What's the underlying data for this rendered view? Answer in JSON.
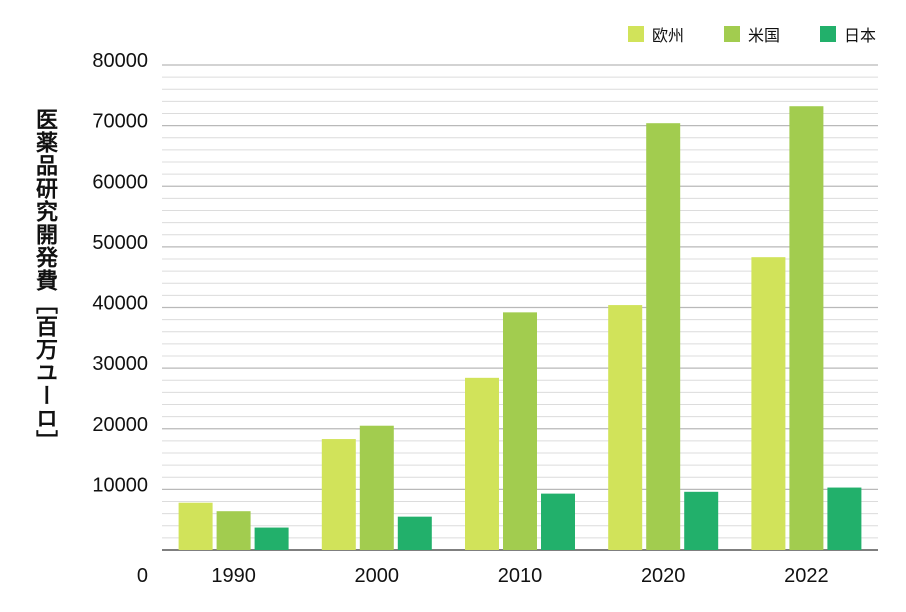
{
  "chart_data": {
    "type": "bar",
    "title": "",
    "xlabel": "",
    "ylabel": "医薬品研究開発費［百万ユーロ］",
    "categories": [
      "1990",
      "2000",
      "2010",
      "2020",
      "2022"
    ],
    "series": [
      {
        "name": "欧州",
        "color": "#d1e35a",
        "values": [
          7800,
          18300,
          28400,
          40400,
          48300
        ]
      },
      {
        "name": "米国",
        "color": "#a2cc4f",
        "values": [
          6400,
          20500,
          39200,
          70400,
          73200
        ]
      },
      {
        "name": "日本",
        "color": "#22b06b",
        "values": [
          3700,
          5500,
          9300,
          9600,
          10300
        ]
      }
    ],
    "ylim": [
      0,
      80000
    ],
    "yticks": [
      "0",
      "10000",
      "20000",
      "30000",
      "40000",
      "50000",
      "60000",
      "70000",
      "80000"
    ],
    "grid": true,
    "legend_position": "top-right"
  }
}
